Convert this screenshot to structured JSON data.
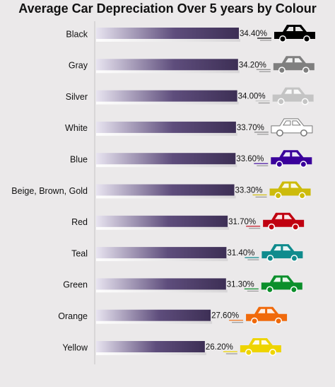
{
  "chart_data": {
    "type": "bar",
    "orientation": "horizontal",
    "title": "Average Car Depreciation Over 5 years by Colour",
    "xlabel": "",
    "ylabel": "",
    "grid": false,
    "legend": "none",
    "categories": [
      "Black",
      "Gray",
      "Silver",
      "White",
      "Blue",
      "Beige, Brown, Gold",
      "Red",
      "Teal",
      "Green",
      "Orange",
      "Yellow"
    ],
    "values": [
      34.4,
      34.2,
      34.0,
      33.7,
      33.6,
      33.3,
      31.7,
      31.4,
      31.3,
      27.6,
      26.2
    ],
    "value_labels": [
      "34.40%",
      "34.20%",
      "34.00%",
      "33.70%",
      "33.60%",
      "33.30%",
      "31.70%",
      "31.40%",
      "31.30%",
      "27.60%",
      "26.20%"
    ],
    "car_colors": [
      "#000000",
      "#7f7f7f",
      "#c4c4c4",
      "#ffffff",
      "#3a009b",
      "#cdbb0b",
      "#c00010",
      "#0f8b8d",
      "#0b8f2b",
      "#f06a0c",
      "#eed400"
    ],
    "bar_gradient": [
      "#e8e4f0",
      "#5e4d7c",
      "#3d2f55"
    ]
  }
}
